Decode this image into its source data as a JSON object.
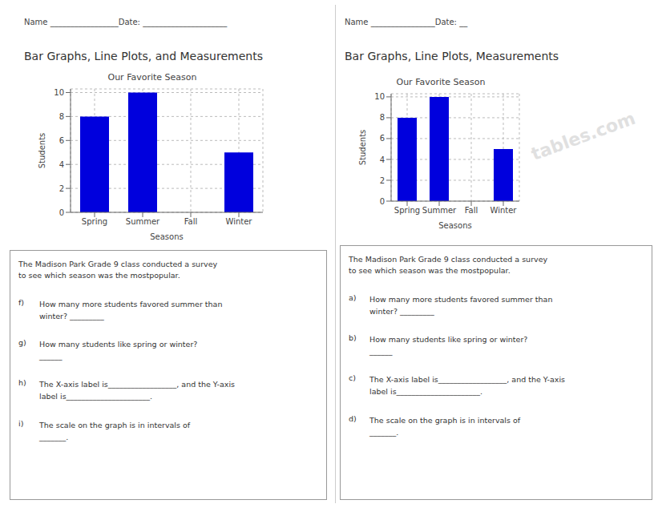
{
  "chart_data": [
    {
      "type": "bar",
      "title": "Our Favorite Season",
      "xlabel": "Seasons",
      "ylabel": "Students",
      "categories": [
        "Spring",
        "Summer",
        "Fall",
        "Winter"
      ],
      "values": [
        8,
        10,
        0,
        5
      ],
      "color": "#0000dd",
      "ylim": [
        0,
        10.3
      ],
      "yticks": [
        0,
        2,
        4,
        6,
        8,
        10
      ],
      "grid": true,
      "annotations": [
        "Name _________________Date: _____________________",
        "Bar Graphs, Line Plots, and Measurements",
        "The Madison Park Grade 9 class conducted a survey\nto see which season was the mostpopular.",
        "f)",
        "How many more students favored summer than\nwinter? _________",
        "g)",
        "How many students like spring or winter?\n______",
        "h)",
        "The X-axis label is__________________, and the Y-axis\nlabel is______________________.",
        "i)",
        "The scale on the graph is in intervals of\n_______."
      ]
    },
    {
      "type": "bar",
      "title": "Our Favorite Season",
      "xlabel": "Seasons",
      "ylabel": "Students",
      "categories": [
        "Spring",
        "Summer",
        "Fall",
        "Winter"
      ],
      "values": [
        8,
        10,
        0,
        5
      ],
      "color": "#0000dd",
      "ylim": [
        0,
        10.3
      ],
      "yticks": [
        0,
        2,
        4,
        6,
        8,
        10
      ],
      "grid": true,
      "annotations": [
        "Name ________________Date: __",
        "Bar Graphs, Line Plots, Measurements",
        "The Madison Park Grade 9 class conducted a survey\nto see which season was the mostpopular.",
        "a)",
        "How many more students favored summer than\nwinter? _________",
        "b)",
        "How many students like spring or winter?\n______",
        "c)",
        "The X-axis label is__________________, and the Y-axis\nlabel is______________________.",
        "d)",
        "The scale on the graph is in intervals of\n_______.",
        "tables.com"
      ]
    }
  ]
}
